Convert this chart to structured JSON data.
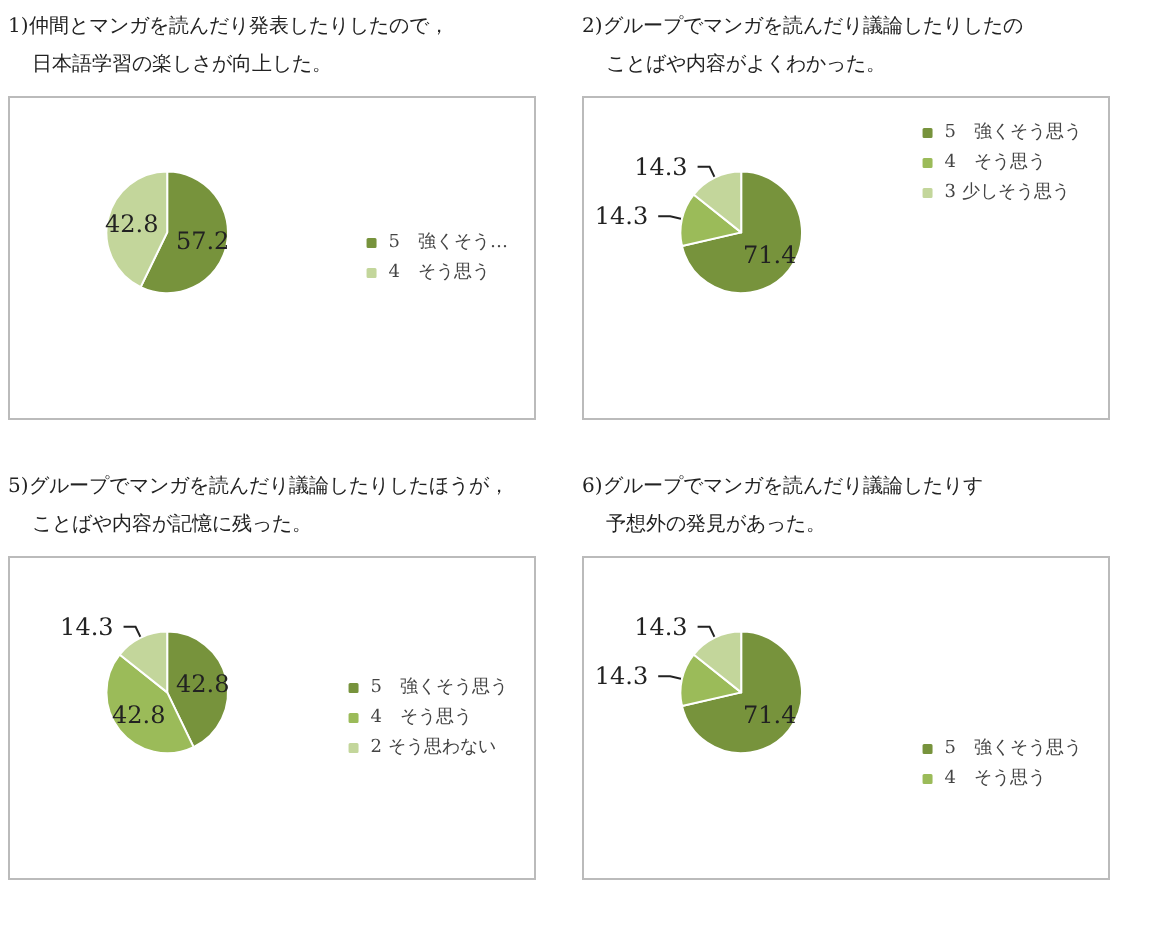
{
  "chart_data": [
    {
      "type": "pie",
      "title": "1)仲間とマンガを読んだり発表したりしたので，",
      "subtitle": "日本語学習の楽しさが向上した。",
      "categories": [
        "5　強くそう…",
        "4　そう思う"
      ],
      "values": [
        57.2,
        42.8
      ],
      "colors": [
        "#77933c",
        "#c3d69b"
      ],
      "data_labels": true,
      "legend": "right"
    },
    {
      "type": "pie",
      "title": "2)グループでマンガを読んだり議論したりしたの",
      "subtitle": "ことばや内容がよくわかった。",
      "categories": [
        "5　強くそう思う",
        "4　そう思う",
        "3 少しそう思う"
      ],
      "values": [
        71.4,
        14.3,
        14.3
      ],
      "colors": [
        "#77933c",
        "#9bbb59",
        "#c3d69b"
      ],
      "data_labels": true,
      "legend": "top right"
    },
    {
      "type": "pie",
      "title": "5)グループでマンガを読んだり議論したりしたほうが，",
      "subtitle": "ことばや内容が記憶に残った。",
      "categories": [
        "5　強くそう思う",
        "4　そう思う",
        "2 そう思わない"
      ],
      "values": [
        42.8,
        42.8,
        14.3
      ],
      "colors": [
        "#77933c",
        "#9bbb59",
        "#c3d69b"
      ],
      "data_labels": true,
      "legend": "right"
    },
    {
      "type": "pie",
      "title": "6)グループでマンガを読んだり議論したりす",
      "subtitle": "予想外の発見があった。",
      "categories": [
        "5　強くそう思う",
        "4　そう思う",
        null
      ],
      "values": [
        71.4,
        14.3,
        14.3
      ],
      "colors": [
        "#77933c",
        "#9bbb59",
        "#c3d69b"
      ],
      "data_labels": true,
      "legend": "bottom right"
    }
  ]
}
